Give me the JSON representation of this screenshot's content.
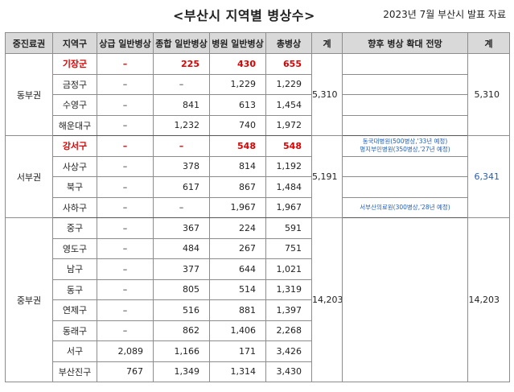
{
  "title": "<부산시 지역별 병상수>",
  "subtitle": "2023년 7월 부산시 발표 자료",
  "headers": [
    "중진료권",
    "지역구",
    "상급 일반병상",
    "종합 일반병상",
    "병원 일반병상",
    "총병상",
    "계",
    "향후 병상 확대 전망",
    "계"
  ],
  "groups": [
    {
      "name": "동부권",
      "total": "5,310",
      "future_total": "5,310",
      "outlook": [
        "",
        "",
        "",
        ""
      ],
      "rows": [
        {
          "district": "기장군",
          "tertiary": "–",
          "general": "225",
          "hospital": "430",
          "total": "655",
          "highlight": true
        },
        {
          "district": "금정구",
          "tertiary": "–",
          "general": "–",
          "hospital": "1,229",
          "total": "1,229",
          "highlight": false
        },
        {
          "district": "수영구",
          "tertiary": "–",
          "general": "841",
          "hospital": "613",
          "total": "1,454",
          "highlight": false
        },
        {
          "district": "해운대구",
          "tertiary": "–",
          "general": "1,232",
          "hospital": "740",
          "total": "1,972",
          "highlight": false
        }
      ]
    },
    {
      "name": "서부권",
      "total": "5,191",
      "future_total": "6,341",
      "outlook": [
        "동국대병원(500병상,'33년 예정)",
        "명지부민병원(350병상,'27년 예정)",
        "서부산의료원(300병상,'28년 예정)"
      ],
      "rows": [
        {
          "district": "강서구",
          "tertiary": "–",
          "general": "–",
          "hospital": "548",
          "total": "548",
          "highlight": true
        },
        {
          "district": "사상구",
          "tertiary": "–",
          "general": "378",
          "hospital": "814",
          "total": "1,192",
          "highlight": false
        },
        {
          "district": "북구",
          "tertiary": "–",
          "general": "617",
          "hospital": "867",
          "total": "1,484",
          "highlight": false
        },
        {
          "district": "사하구",
          "tertiary": "–",
          "general": "–",
          "hospital": "1,967",
          "total": "1,967",
          "highlight": false
        }
      ]
    },
    {
      "name": "중부권",
      "total": "14,203",
      "future_total": "14,203",
      "rows": [
        {
          "district": "중구",
          "tertiary": "–",
          "general": "367",
          "hospital": "224",
          "total": "591",
          "highlight": false
        },
        {
          "district": "영도구",
          "tertiary": "–",
          "general": "484",
          "hospital": "267",
          "total": "751",
          "highlight": false
        },
        {
          "district": "남구",
          "tertiary": "–",
          "general": "377",
          "hospital": "644",
          "total": "1,021",
          "highlight": false
        },
        {
          "district": "동구",
          "tertiary": "–",
          "general": "805",
          "hospital": "514",
          "total": "1,319",
          "highlight": false
        },
        {
          "district": "연제구",
          "tertiary": "–",
          "general": "516",
          "hospital": "881",
          "total": "1,397",
          "highlight": false
        },
        {
          "district": "동래구",
          "tertiary": "–",
          "general": "862",
          "hospital": "1,406",
          "total": "2,268",
          "highlight": false
        },
        {
          "district": "서구",
          "tertiary": "2,089",
          "general": "1,166",
          "hospital": "171",
          "total": "3,426",
          "highlight": false
        },
        {
          "district": "부산진구",
          "tertiary": "767",
          "general": "1,349",
          "hospital": "1,314",
          "total": "3,430",
          "highlight": false
        }
      ]
    }
  ]
}
